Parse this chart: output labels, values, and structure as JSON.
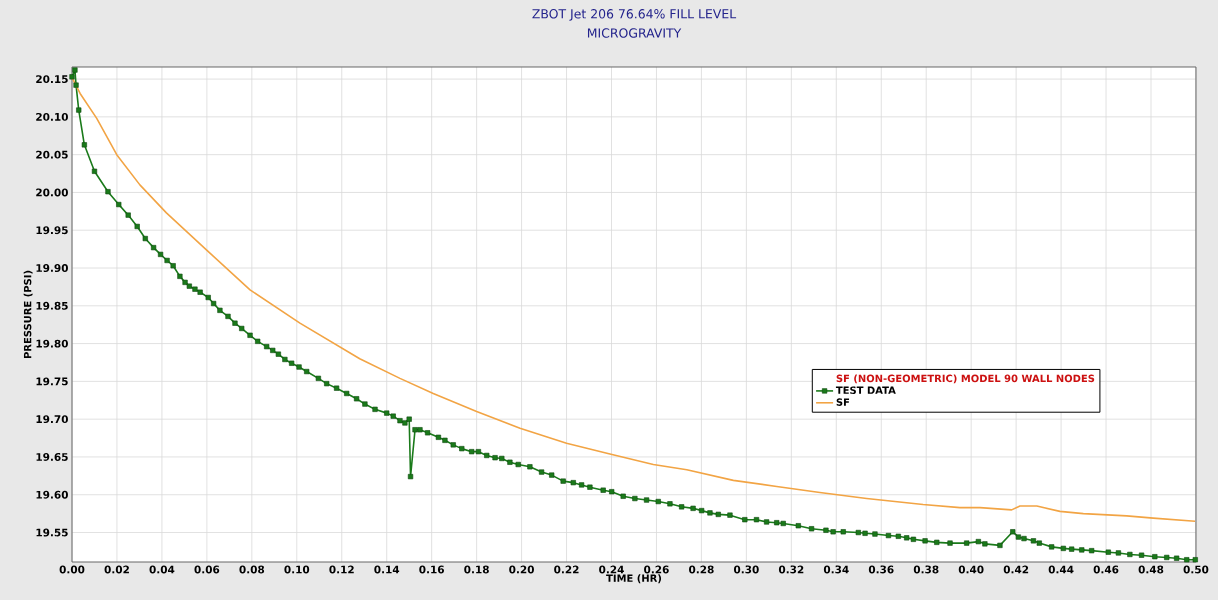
{
  "chart_data": {
    "type": "line",
    "title": "ZBOT Jet 206 76.64% FILL LEVEL",
    "subtitle": "MICROGRAVITY",
    "xlabel": "TIME (HR)",
    "ylabel": "PRESSURE (PSI)",
    "legend_title": "SF (NON-GEOMETRIC) MODEL 90 WALL NODES",
    "series": [
      {
        "name": "TEST DATA",
        "color": "#1a7a1a",
        "marker": "square",
        "x": [
          0,
          0.0013,
          0.0018,
          0.003,
          0.0055,
          0.01,
          0.016,
          0.0208,
          0.025,
          0.029,
          0.0326,
          0.0363,
          0.0394,
          0.0423,
          0.045,
          0.048,
          0.0503,
          0.0522,
          0.0547,
          0.057,
          0.0606,
          0.063,
          0.0658,
          0.0694,
          0.0725,
          0.0755,
          0.0792,
          0.0826,
          0.0866,
          0.0893,
          0.0918,
          0.0947,
          0.0977,
          0.101,
          0.1044,
          0.1096,
          0.1133,
          0.1177,
          0.1222,
          0.1266,
          0.1303,
          0.1348,
          0.14,
          0.1429,
          0.1459,
          0.1481,
          0.15,
          0.1506,
          0.1526,
          0.1548,
          0.1582,
          0.163,
          0.1659,
          0.1696,
          0.1734,
          0.1778,
          0.1808,
          0.1845,
          0.1882,
          0.1912,
          0.1948,
          0.1985,
          0.2037,
          0.2089,
          0.2134,
          0.2185,
          0.223,
          0.2267,
          0.2304,
          0.2363,
          0.2401,
          0.2452,
          0.2504,
          0.2556,
          0.2608,
          0.266,
          0.2712,
          0.2763,
          0.2801,
          0.2838,
          0.2875,
          0.2927,
          0.2993,
          0.3045,
          0.309,
          0.3135,
          0.3164,
          0.3231,
          0.329,
          0.3354,
          0.3386,
          0.3431,
          0.3498,
          0.3528,
          0.3572,
          0.3632,
          0.3676,
          0.3713,
          0.3743,
          0.3795,
          0.3847,
          0.3906,
          0.398,
          0.4032,
          0.4061,
          0.4128,
          0.4185,
          0.421,
          0.4235,
          0.4277,
          0.4303,
          0.4358,
          0.441,
          0.4447,
          0.4492,
          0.4536,
          0.461,
          0.4655,
          0.4706,
          0.4758,
          0.4817,
          0.487,
          0.4914,
          0.4959,
          0.4997
        ],
        "values": [
          20.153,
          20.162,
          20.142,
          20.109,
          20.063,
          20.028,
          20.001,
          19.984,
          19.97,
          19.955,
          19.939,
          19.927,
          19.918,
          19.91,
          19.903,
          19.889,
          19.881,
          19.876,
          19.872,
          19.868,
          19.861,
          19.853,
          19.844,
          19.836,
          19.827,
          19.82,
          19.811,
          19.803,
          19.796,
          19.791,
          19.786,
          19.779,
          19.774,
          19.769,
          19.763,
          19.754,
          19.747,
          19.741,
          19.734,
          19.727,
          19.72,
          19.713,
          19.708,
          19.704,
          19.698,
          19.695,
          19.7,
          19.624,
          19.686,
          19.686,
          19.682,
          19.676,
          19.672,
          19.666,
          19.661,
          19.657,
          19.657,
          19.652,
          19.649,
          19.648,
          19.643,
          19.64,
          19.637,
          19.63,
          19.626,
          19.618,
          19.616,
          19.613,
          19.61,
          19.606,
          19.604,
          19.598,
          19.595,
          19.593,
          19.591,
          19.588,
          19.584,
          19.582,
          19.579,
          19.576,
          19.574,
          19.573,
          19.567,
          19.567,
          19.564,
          19.563,
          19.562,
          19.559,
          19.555,
          19.553,
          19.551,
          19.551,
          19.55,
          19.549,
          19.548,
          19.546,
          19.545,
          19.543,
          19.541,
          19.539,
          19.537,
          19.536,
          19.536,
          19.538,
          19.535,
          19.533,
          19.551,
          19.544,
          19.542,
          19.539,
          19.536,
          19.531,
          19.529,
          19.528,
          19.527,
          19.526,
          19.524,
          19.523,
          19.521,
          19.52,
          19.518,
          19.517,
          19.516,
          19.514,
          19.514
        ]
      },
      {
        "name": "SF",
        "color": "#f2a444",
        "marker": "none",
        "x": [
          0,
          0.0036,
          0.011,
          0.0199,
          0.0302,
          0.042,
          0.0598,
          0.0792,
          0.1014,
          0.128,
          0.1459,
          0.1607,
          0.18,
          0.1993,
          0.22,
          0.2393,
          0.2586,
          0.2735,
          0.2942,
          0.3135,
          0.3327,
          0.3535,
          0.3786,
          0.395,
          0.4039,
          0.418,
          0.4217,
          0.4292,
          0.4395,
          0.4499,
          0.4692,
          0.481,
          0.4996
        ],
        "values": [
          20.152,
          20.131,
          20.098,
          20.05,
          20.01,
          19.973,
          19.924,
          19.871,
          19.827,
          19.78,
          19.754,
          19.734,
          19.71,
          19.688,
          19.668,
          19.654,
          19.64,
          19.633,
          19.619,
          19.611,
          19.603,
          19.595,
          19.587,
          19.583,
          19.583,
          19.58,
          19.585,
          19.585,
          19.578,
          19.575,
          19.572,
          19.569,
          19.565
        ]
      }
    ],
    "xlim": [
      0,
      0.5
    ],
    "ylim": [
      19.511,
      20.166
    ],
    "xticks": [
      {
        "value": 0,
        "label": "0.00"
      },
      {
        "value": 0.02,
        "label": "0.02"
      },
      {
        "value": 0.04,
        "label": "0.04"
      },
      {
        "value": 0.06,
        "label": "0.06"
      },
      {
        "value": 0.08,
        "label": "0.08"
      },
      {
        "value": 0.1,
        "label": "0.10"
      },
      {
        "value": 0.12,
        "label": "0.12"
      },
      {
        "value": 0.14,
        "label": "0.14"
      },
      {
        "value": 0.16,
        "label": "0.16"
      },
      {
        "value": 0.18,
        "label": "0.18"
      },
      {
        "value": 0.2,
        "label": "0.20"
      },
      {
        "value": 0.22,
        "label": "0.22"
      },
      {
        "value": 0.24,
        "label": "0.24"
      },
      {
        "value": 0.26,
        "label": "0.26"
      },
      {
        "value": 0.28,
        "label": "0.28"
      },
      {
        "value": 0.3,
        "label": "0.30"
      },
      {
        "value": 0.32,
        "label": "0.32"
      },
      {
        "value": 0.34,
        "label": "0.34"
      },
      {
        "value": 0.36,
        "label": "0.36"
      },
      {
        "value": 0.38,
        "label": "0.38"
      },
      {
        "value": 0.4,
        "label": "0.40"
      },
      {
        "value": 0.42,
        "label": "0.42"
      },
      {
        "value": 0.44,
        "label": "0.44"
      },
      {
        "value": 0.46,
        "label": "0.46"
      },
      {
        "value": 0.48,
        "label": "0.48"
      },
      {
        "value": 0.5,
        "label": "0.50"
      }
    ],
    "yticks": [
      {
        "value": 19.55,
        "label": "19.55"
      },
      {
        "value": 19.6,
        "label": "19.60"
      },
      {
        "value": 19.65,
        "label": "19.65"
      },
      {
        "value": 19.7,
        "label": "19.70"
      },
      {
        "value": 19.75,
        "label": "19.75"
      },
      {
        "value": 19.8,
        "label": "19.80"
      },
      {
        "value": 19.85,
        "label": "19.85"
      },
      {
        "value": 19.9,
        "label": "19.90"
      },
      {
        "value": 19.95,
        "label": "19.95"
      },
      {
        "value": 20.0,
        "label": "20.00"
      },
      {
        "value": 20.05,
        "label": "20.05"
      },
      {
        "value": 20.1,
        "label": "20.10"
      },
      {
        "value": 20.15,
        "label": "20.15"
      }
    ],
    "grid": true,
    "legend": "right",
    "line_style": "solid"
  }
}
